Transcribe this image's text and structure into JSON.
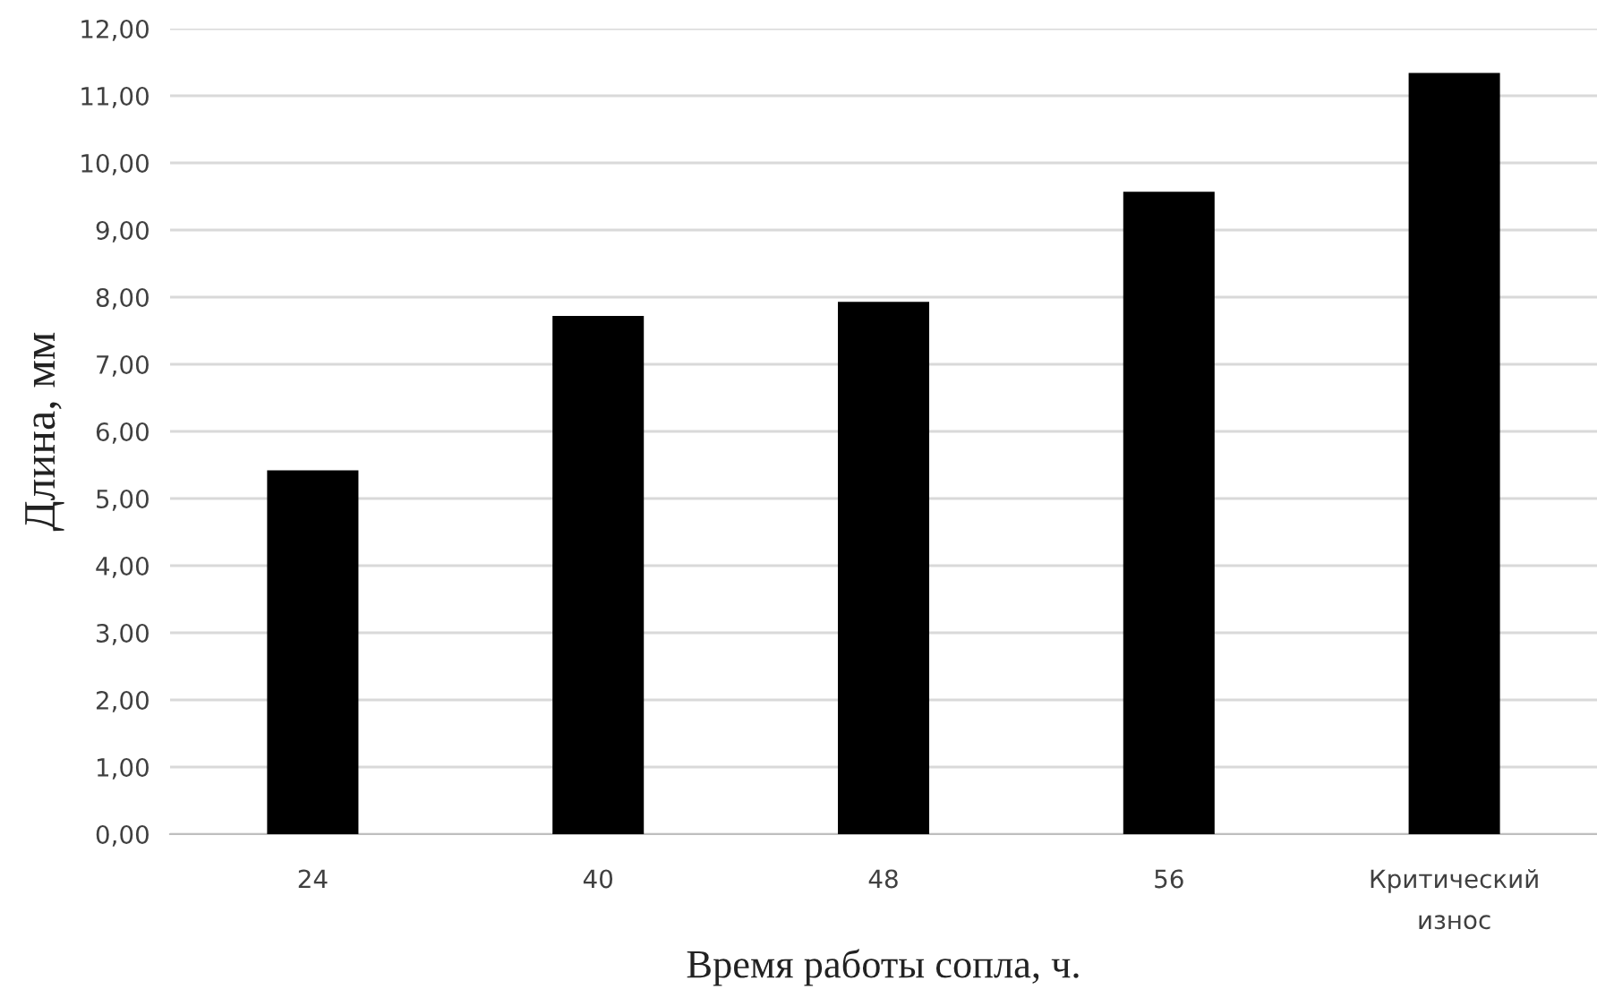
{
  "chart_data": {
    "type": "bar",
    "xlabel": "Время работы сопла, ч.",
    "ylabel": "Длина, мм",
    "categories": [
      "24",
      "40",
      "48",
      "56",
      "Критический\nизнос"
    ],
    "values": [
      5.42,
      7.72,
      7.93,
      9.57,
      11.34
    ],
    "color": "#000000",
    "ylim": [
      0,
      12
    ],
    "yticks": [
      {
        "value": 0,
        "label": "0,00"
      },
      {
        "value": 1,
        "label": "1,00"
      },
      {
        "value": 2,
        "label": "2,00"
      },
      {
        "value": 3,
        "label": "3,00"
      },
      {
        "value": 4,
        "label": "4,00"
      },
      {
        "value": 5,
        "label": "5,00"
      },
      {
        "value": 6,
        "label": "6,00"
      },
      {
        "value": 7,
        "label": "7,00"
      },
      {
        "value": 8,
        "label": "8,00"
      },
      {
        "value": 9,
        "label": "9,00"
      },
      {
        "value": 10,
        "label": "10,00"
      },
      {
        "value": 11,
        "label": "11,00"
      },
      {
        "value": 12,
        "label": "12,00"
      }
    ],
    "grid": "y",
    "legend": false
  }
}
